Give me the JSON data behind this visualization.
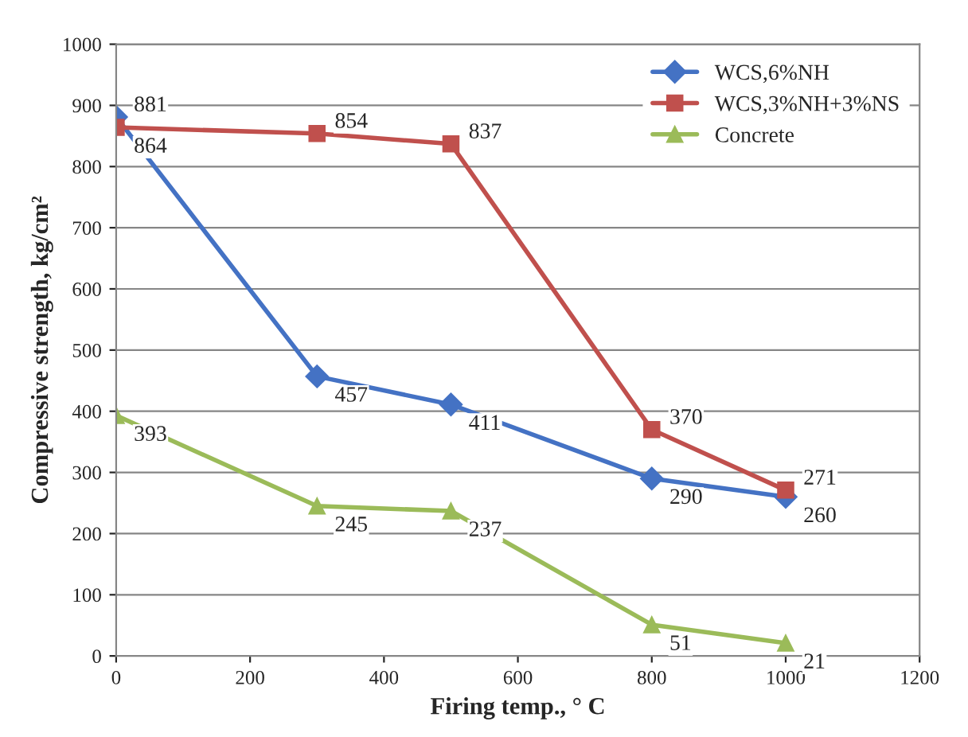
{
  "chart_data": {
    "type": "line",
    "xlabel": "Firing temp., ° C",
    "ylabel": "Compressive strength, kg/cm²",
    "x": [
      0,
      300,
      500,
      800,
      1000
    ],
    "series": [
      {
        "name": "WCS,6%NH",
        "color": "#4472c4",
        "marker": "diamond",
        "values": [
          881,
          457,
          411,
          290,
          260
        ]
      },
      {
        "name": "WCS,3%NH+3%NS",
        "color": "#c0504d",
        "marker": "square",
        "values": [
          864,
          854,
          837,
          370,
          271
        ]
      },
      {
        "name": "Concrete",
        "color": "#9bbb59",
        "marker": "triangle",
        "values": [
          393,
          245,
          237,
          51,
          21
        ]
      }
    ],
    "xlim": [
      0,
      1200
    ],
    "xticks": [
      0,
      200,
      400,
      600,
      800,
      1000,
      1200
    ],
    "ylim": [
      0,
      1000
    ],
    "yticks": [
      0,
      100,
      200,
      300,
      400,
      500,
      600,
      700,
      800,
      900,
      1000
    ],
    "grid": "y",
    "legend": "top right",
    "data_labels": true,
    "line_style": "solid"
  }
}
